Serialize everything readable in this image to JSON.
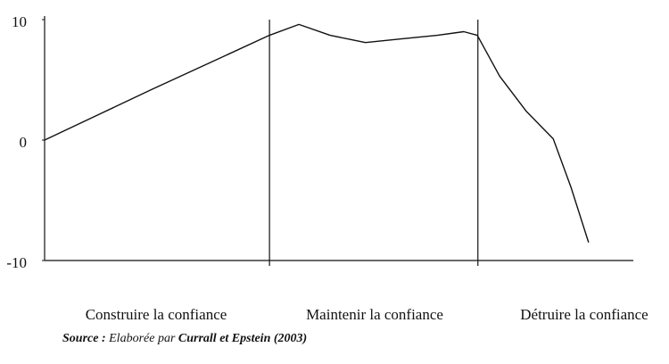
{
  "chart_data": {
    "type": "line",
    "categories": [
      "Construire la confiance",
      "Maintenir la confiance",
      "Détruire la confiance"
    ],
    "x": [
      0,
      18.2,
      38.2,
      43.2,
      48.5,
      54.5,
      60.6,
      66.7,
      71.2,
      73.5,
      77.3,
      81.8,
      86.4,
      89.4,
      92.4
    ],
    "values": [
      0,
      4.2,
      8.7,
      9.6,
      8.7,
      8.1,
      8.4,
      8.7,
      9.0,
      8.7,
      5.3,
      2.4,
      0.1,
      -3.9,
      -8.5
    ],
    "color": "#111111",
    "dividers": [
      38.2,
      73.6
    ],
    "xlim": [
      0,
      100
    ],
    "ylim": [
      -10,
      10
    ],
    "yticks": [
      -10,
      0,
      10
    ],
    "source": [
      "Source :",
      "Elaborée par",
      "Currall et Epstein (2003)"
    ]
  }
}
